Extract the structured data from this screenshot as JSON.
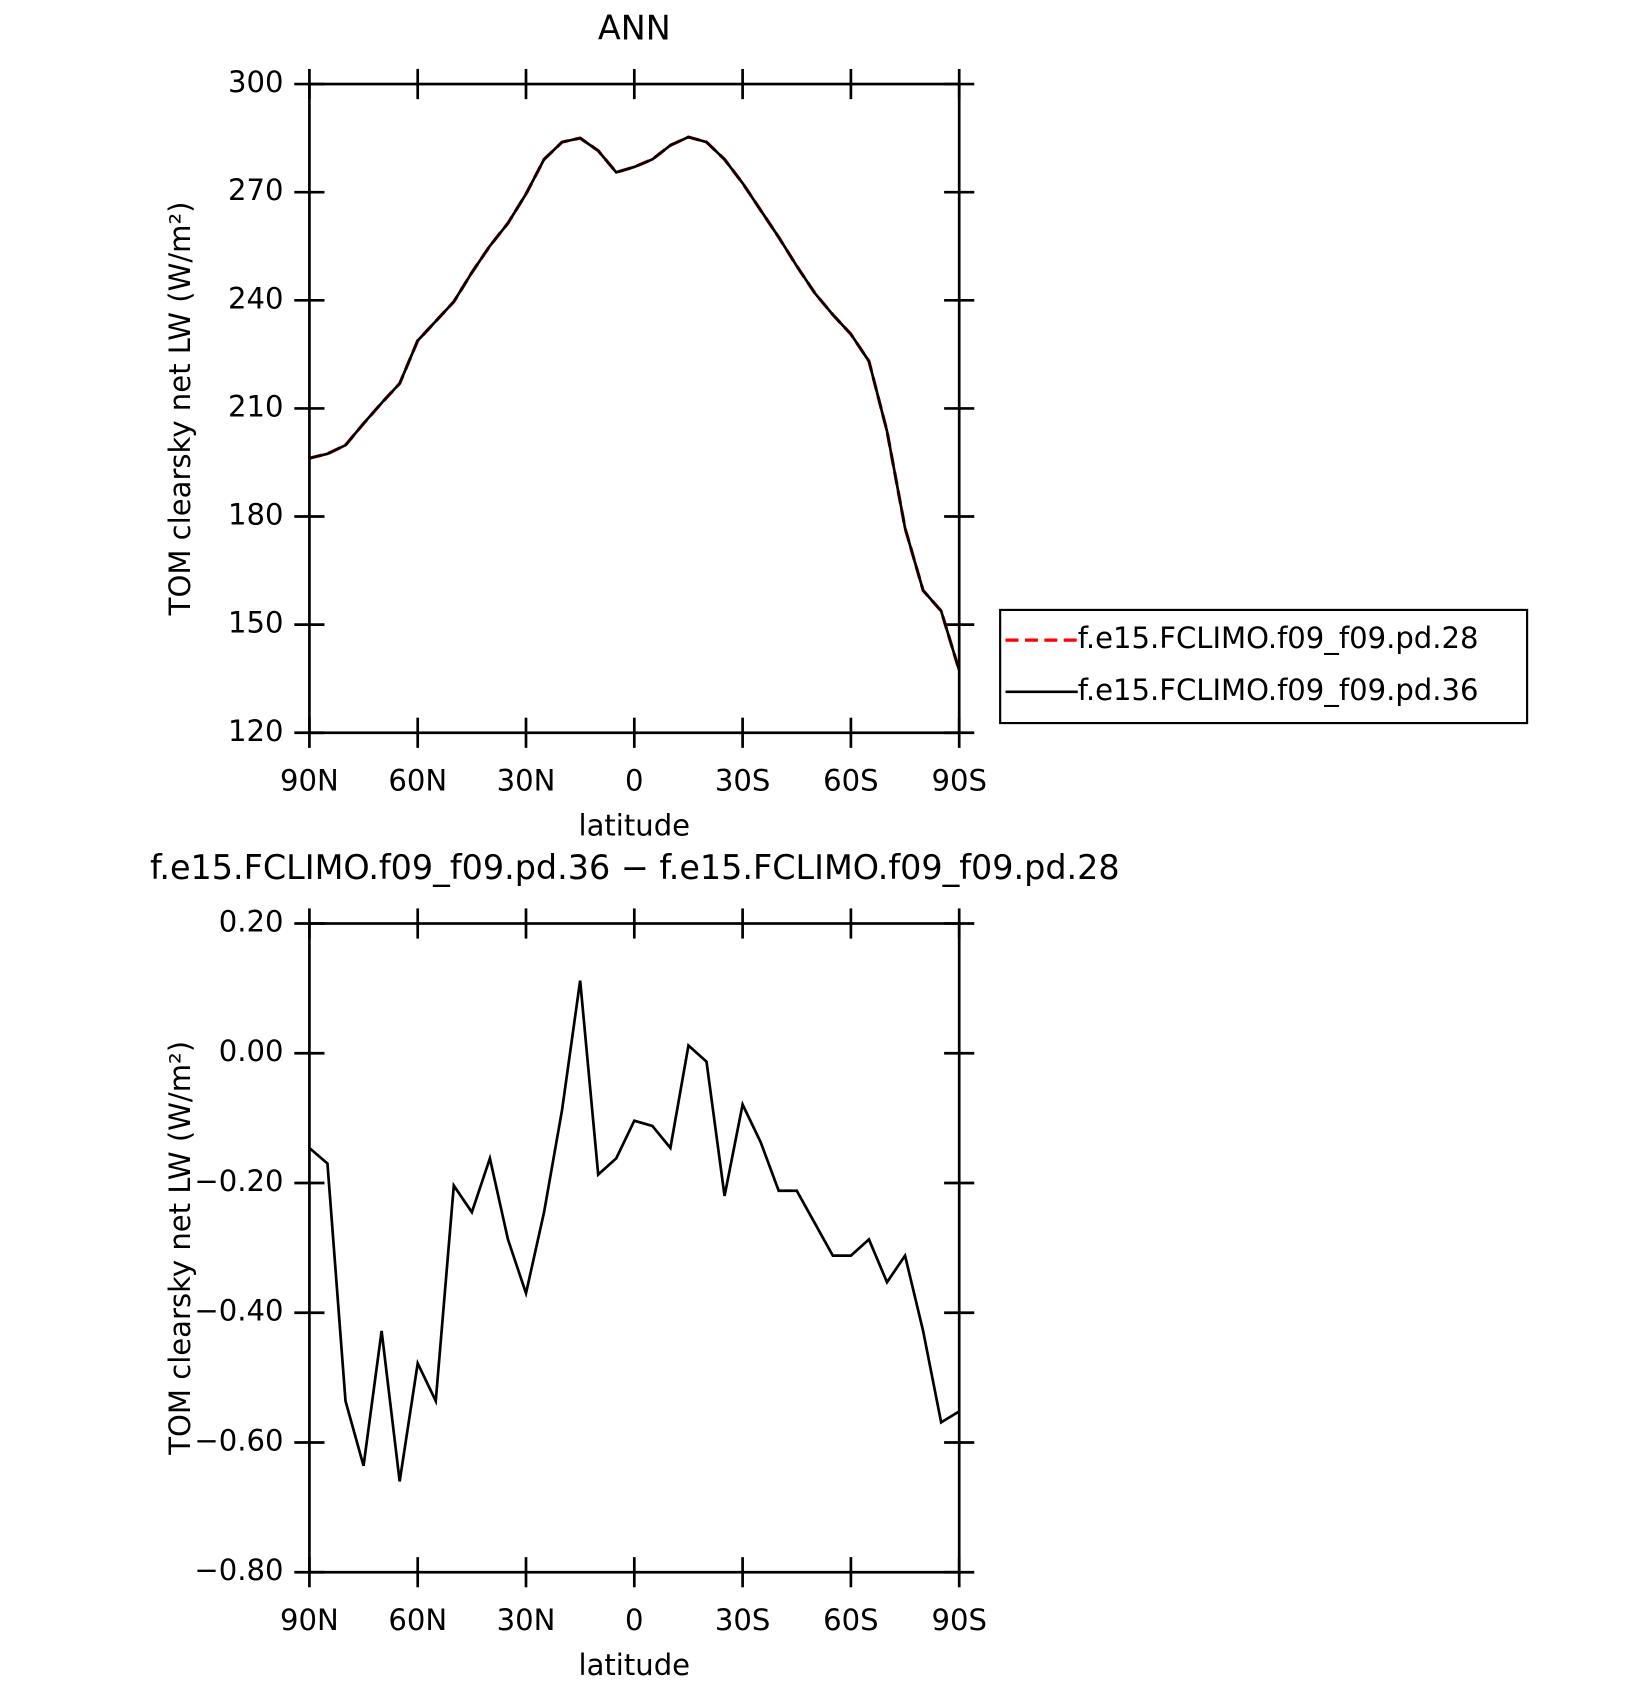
{
  "chart_data": [
    {
      "type": "line",
      "title": "ANN",
      "xlabel": "latitude",
      "ylabel": "TOM clearsky net LW (W/m²)",
      "x": [
        90,
        85,
        80,
        75,
        70,
        65,
        60,
        55,
        50,
        45,
        40,
        35,
        30,
        25,
        20,
        15,
        10,
        5,
        0,
        -5,
        -10,
        -15,
        -20,
        -25,
        -30,
        -35,
        -40,
        -45,
        -50,
        -55,
        -60,
        -65,
        -70,
        -75,
        -80,
        -85,
        -90
      ],
      "xlim": [
        90,
        -90
      ],
      "xticks": [
        {
          "value": 90,
          "label": "90N"
        },
        {
          "value": 60,
          "label": "60N"
        },
        {
          "value": 30,
          "label": "30N"
        },
        0,
        {
          "value": -30,
          "label": "30S"
        },
        {
          "value": -60,
          "label": "60S"
        },
        {
          "value": -90,
          "label": "90S"
        }
      ],
      "ylim": [
        120,
        300
      ],
      "yticks": [
        120,
        150,
        180,
        210,
        240,
        270,
        300
      ],
      "legend": "right",
      "series": [
        {
          "name": "f.e15.FCLIMO.f09_f09.pd.28",
          "color": "#ff0000",
          "dash": true,
          "values": [
            196.2,
            197.4,
            199.8,
            205.8,
            211.5,
            216.9,
            228.8,
            234.2,
            239.6,
            247.7,
            255.1,
            261.4,
            269.5,
            279.1,
            283.9,
            285.0,
            281.5,
            275.5,
            277.0,
            279.1,
            283.0,
            285.3,
            283.9,
            279.1,
            272.5,
            265.0,
            257.5,
            249.5,
            242.0,
            236.0,
            230.6,
            223.1,
            203.7,
            176.8,
            159.5,
            153.8,
            137.3
          ]
        },
        {
          "name": "f.e15.FCLIMO.f09_f09.pd.36",
          "color": "#000000",
          "dash": false,
          "values": [
            196.2,
            197.4,
            199.8,
            205.8,
            211.5,
            216.9,
            228.8,
            234.2,
            239.6,
            247.7,
            255.1,
            261.4,
            269.5,
            279.1,
            283.9,
            285.0,
            281.5,
            275.5,
            277.0,
            279.1,
            283.0,
            285.3,
            283.9,
            279.1,
            272.5,
            265.0,
            257.5,
            249.5,
            242.0,
            236.0,
            230.6,
            223.1,
            203.7,
            176.8,
            159.5,
            153.8,
            137.3
          ]
        }
      ]
    },
    {
      "type": "line",
      "title": "f.e15.FCLIMO.f09_f09.pd.36 − f.e15.FCLIMO.f09_f09.pd.28",
      "xlabel": "latitude",
      "ylabel": "TOM clearsky net LW (W/m²)",
      "x": [
        90,
        85,
        80,
        75,
        70,
        65,
        60,
        55,
        50,
        45,
        40,
        35,
        30,
        25,
        20,
        15,
        10,
        5,
        0,
        -5,
        -10,
        -15,
        -20,
        -25,
        -30,
        -35,
        -40,
        -45,
        -50,
        -55,
        -60,
        -65,
        -70,
        -75,
        -80,
        -85,
        -90
      ],
      "xlim": [
        90,
        -90
      ],
      "xticks": [
        {
          "value": 90,
          "label": "90N"
        },
        {
          "value": 60,
          "label": "60N"
        },
        {
          "value": 30,
          "label": "30N"
        },
        0,
        {
          "value": -30,
          "label": "30S"
        },
        {
          "value": -60,
          "label": "60S"
        },
        {
          "value": -90,
          "label": "90S"
        }
      ],
      "ylim": [
        -0.8,
        0.2
      ],
      "yticks": [
        {
          "value": -0.8,
          "label": "−0.80"
        },
        {
          "value": -0.6,
          "label": "−0.60"
        },
        {
          "value": -0.4,
          "label": "−0.40"
        },
        {
          "value": -0.2,
          "label": "−0.20"
        },
        {
          "value": 0,
          "label": "0.00"
        },
        {
          "value": 0.2,
          "label": "0.20"
        }
      ],
      "series": [
        {
          "color": "#000000",
          "dash": false,
          "values": [
            -0.146,
            -0.17,
            -0.536,
            -0.636,
            -0.428,
            -0.66,
            -0.478,
            -0.536,
            -0.204,
            -0.245,
            -0.162,
            -0.287,
            -0.37,
            -0.245,
            -0.087,
            0.112,
            -0.187,
            -0.162,
            -0.104,
            -0.112,
            -0.146,
            0.012,
            -0.013,
            -0.22,
            -0.079,
            -0.137,
            -0.212,
            -0.212,
            -0.262,
            -0.312,
            -0.312,
            -0.287,
            -0.353,
            -0.312,
            -0.428,
            -0.569,
            -0.552
          ]
        }
      ]
    }
  ]
}
